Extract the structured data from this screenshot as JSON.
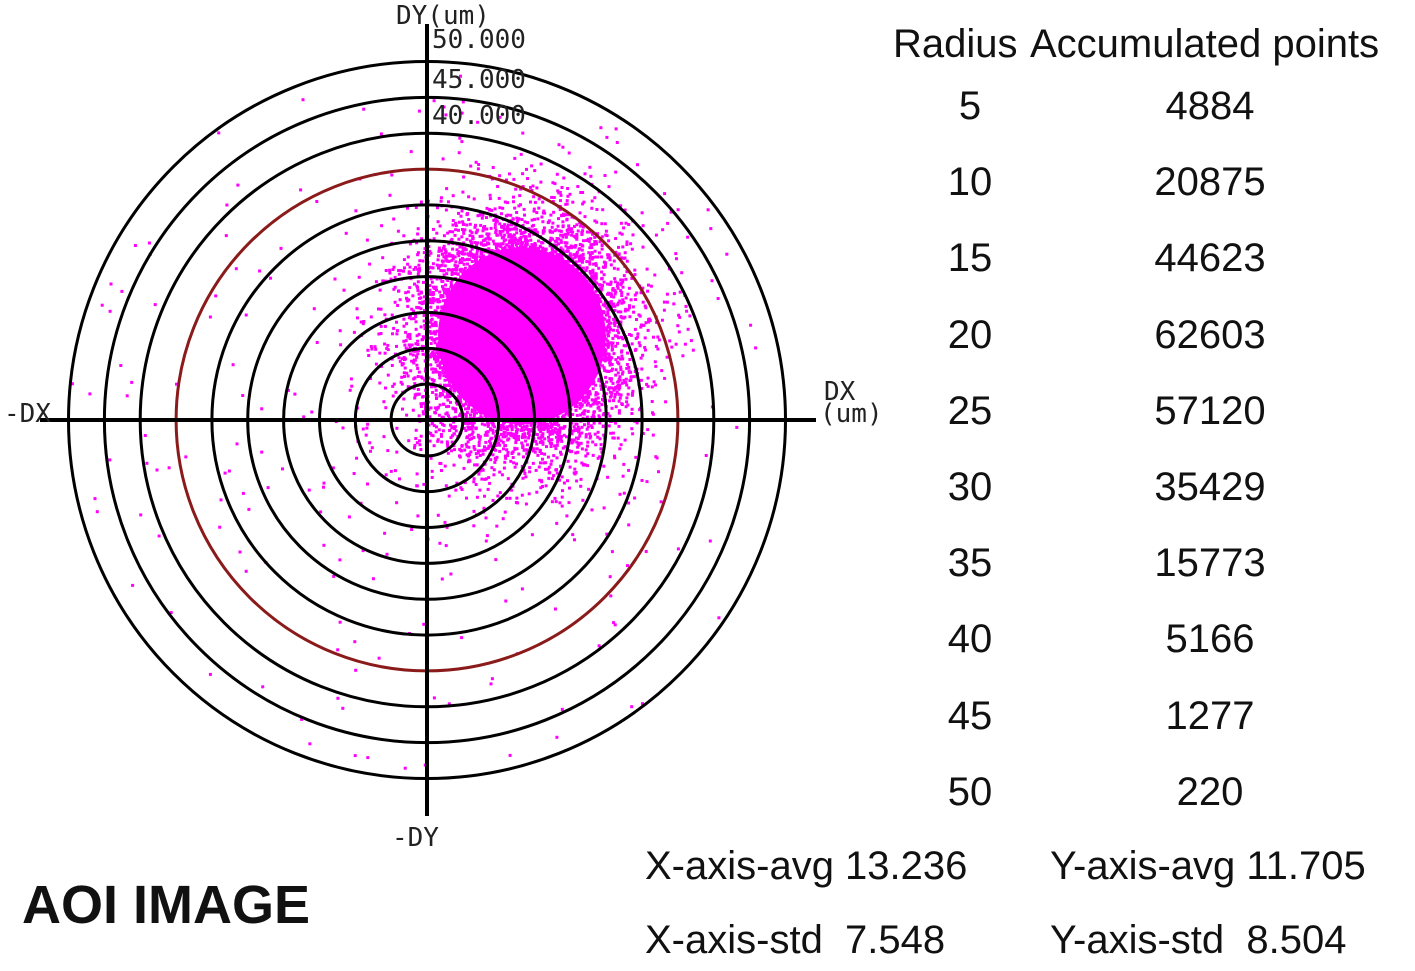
{
  "chart_data": {
    "type": "scatter",
    "title": "",
    "axes": {
      "y_label": "DY(um)",
      "x_label_line1": "DX",
      "x_label_line2": "(um)",
      "neg_x_label": "-DX",
      "neg_y_label": "-DY",
      "ring_tick_labels": [
        "50.000",
        "45.000",
        "40.000"
      ]
    },
    "rings_um": [
      5,
      10,
      15,
      20,
      25,
      30,
      35,
      40,
      45,
      50
    ],
    "highlight_ring_um": 35,
    "cloud": {
      "center_x_um": 13.236,
      "center_y_um": 11.705,
      "std_x_um": 7.548,
      "std_y_um": 8.504,
      "color": "#ff00ff"
    }
  },
  "table": {
    "headers": [
      "Radius",
      "Accumulated points"
    ],
    "rows": [
      {
        "radius": "5",
        "points": "4884"
      },
      {
        "radius": "10",
        "points": "20875"
      },
      {
        "radius": "15",
        "points": "44623"
      },
      {
        "radius": "20",
        "points": "62603"
      },
      {
        "radius": "25",
        "points": "57120"
      },
      {
        "radius": "30",
        "points": "35429"
      },
      {
        "radius": "35",
        "points": "15773"
      },
      {
        "radius": "40",
        "points": "5166"
      },
      {
        "radius": "45",
        "points": "1277"
      },
      {
        "radius": "50",
        "points": "220"
      }
    ]
  },
  "stats": {
    "x_avg": "X-axis-avg 13.236",
    "y_avg": "Y-axis-avg 11.705",
    "x_std": "X-axis-std  7.548",
    "y_std": "Y-axis-std  8.504"
  },
  "caption": "AOI IMAGE"
}
